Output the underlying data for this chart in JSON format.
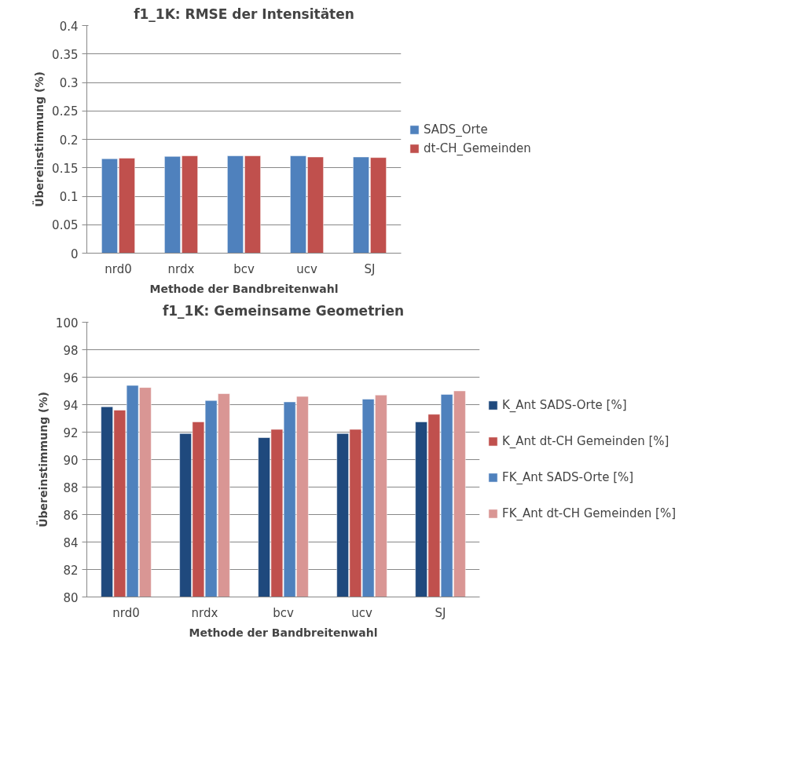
{
  "chart_data": [
    {
      "type": "bar",
      "title": "f1_1K: RMSE der Intensitäten",
      "xlabel": "Methode der Bandbreitenwahl",
      "ylabel": "Übereinstimmung (%)",
      "categories": [
        "nrd0",
        "nrdx",
        "bcv",
        "ucv",
        "SJ"
      ],
      "series": [
        {
          "name": "SADS_Orte",
          "color": "#4f81bd",
          "values": [
            0.166,
            0.17,
            0.171,
            0.171,
            0.169
          ]
        },
        {
          "name": "dt-CH_Gemeinden",
          "color": "#c0504d",
          "values": [
            0.167,
            0.171,
            0.171,
            0.169,
            0.168
          ]
        }
      ],
      "ylim": [
        0,
        0.4
      ],
      "yticks": [
        0,
        0.05,
        0.1,
        0.15,
        0.2,
        0.25,
        0.3,
        0.35,
        0.4
      ],
      "grid": "y",
      "legend": "right"
    },
    {
      "type": "bar",
      "title": "f1_1K: Gemeinsame Geometrien",
      "xlabel": "Methode der Bandbreitenwahl",
      "ylabel": "Übereinstimmung (%)",
      "categories": [
        "nrd0",
        "nrdx",
        "bcv",
        "ucv",
        "SJ"
      ],
      "series": [
        {
          "name": "K_Ant SADS-Orte [%]",
          "color": "#1f497d",
          "values": [
            93.85,
            91.9,
            91.6,
            91.9,
            92.75
          ]
        },
        {
          "name": "K_Ant dt-CH Gemeinden [%]",
          "color": "#c0504d",
          "values": [
            93.6,
            92.75,
            92.2,
            92.2,
            93.3
          ]
        },
        {
          "name": "FK_Ant SADS-Orte [%]",
          "color": "#4f81bd",
          "values": [
            95.4,
            94.3,
            94.2,
            94.4,
            94.75
          ]
        },
        {
          "name": "FK_Ant dt-CH Gemeinden [%]",
          "color": "#d99694",
          "values": [
            95.25,
            94.8,
            94.6,
            94.7,
            95.0
          ]
        }
      ],
      "ylim": [
        80,
        100
      ],
      "yticks": [
        80,
        82,
        84,
        86,
        88,
        90,
        92,
        94,
        96,
        98,
        100
      ],
      "grid": "y",
      "legend": "right"
    }
  ]
}
